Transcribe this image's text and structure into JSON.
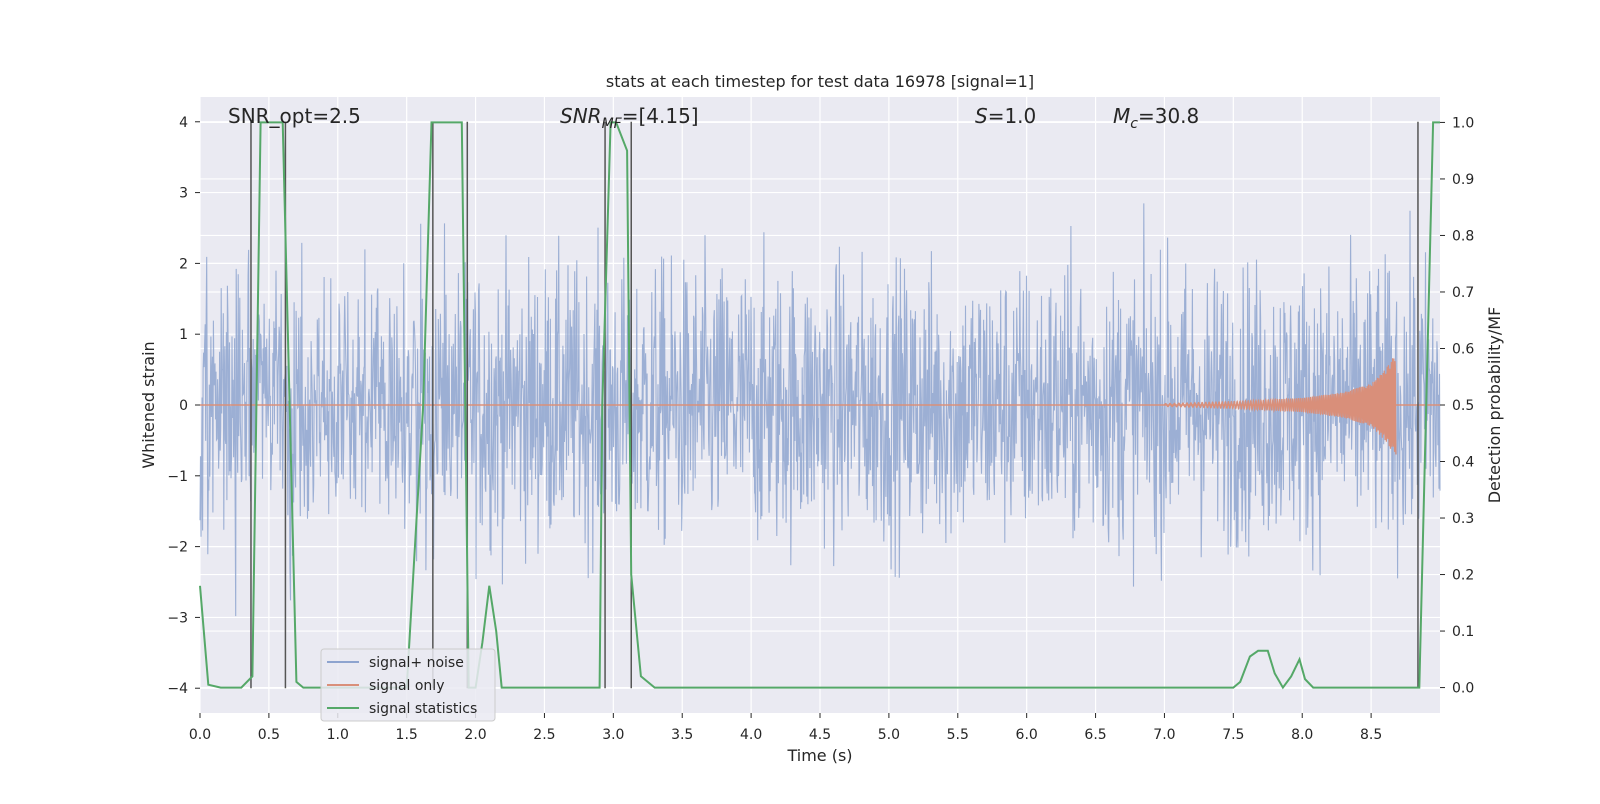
{
  "chart_data": {
    "type": "line",
    "title": "stats at each timestep for test data 16978 [signal=1]",
    "xlabel": "Time (s)",
    "ylabel": "Whitened strain",
    "y2label": "Detection probability/MF",
    "xlim": [
      0.0,
      9.0
    ],
    "ylim": [
      -4.35,
      4.35
    ],
    "y2lim": [
      -0.045,
      1.045
    ],
    "xticks": [
      "0.0",
      "0.5",
      "1.0",
      "1.5",
      "2.0",
      "2.5",
      "3.0",
      "3.5",
      "4.0",
      "4.5",
      "5.0",
      "5.5",
      "6.0",
      "6.5",
      "7.0",
      "7.5",
      "8.0",
      "8.5"
    ],
    "yticks": [
      "4",
      "3",
      "2",
      "1",
      "0",
      "−1",
      "−2",
      "−3",
      "−4"
    ],
    "y2ticks": [
      "1.0",
      "0.9",
      "0.8",
      "0.7",
      "0.6",
      "0.5",
      "0.4",
      "0.3",
      "0.2",
      "0.1",
      "0.0"
    ],
    "grid": true,
    "legend_position": "lower-left",
    "annotations": {
      "snr_opt": "SNR_opt=2.5",
      "snr_mf_main": "SNR",
      "snr_mf_sub": "MF",
      "snr_mf_rest": "=[4.15]",
      "s_main": "S",
      "s_rest": "=1.0",
      "mc_main": "M",
      "mc_sub": "c",
      "mc_rest": "=30.8"
    },
    "series": [
      {
        "name": "signal+ noise",
        "color": "#8ea4cf",
        "kind": "noise",
        "amplitude_envelope": 2.6
      },
      {
        "name": "signal only",
        "color": "#d98f7a",
        "kind": "chirp",
        "x": [
          7.0,
          7.5,
          8.0,
          8.3,
          8.5,
          8.6,
          8.65,
          8.68
        ],
        "envelope": [
          0.02,
          0.05,
          0.1,
          0.18,
          0.3,
          0.5,
          0.65,
          0.7
        ]
      },
      {
        "name": "signal statistics",
        "color": "#55a868",
        "axis": "right",
        "x": [
          0.0,
          0.06,
          0.15,
          0.3,
          0.38,
          0.44,
          0.5,
          0.6,
          0.7,
          0.75,
          0.8,
          1.0,
          1.5,
          1.62,
          1.68,
          1.74,
          1.8,
          1.9,
          1.95,
          2.0,
          2.05,
          2.1,
          2.15,
          2.19,
          2.25,
          2.3,
          2.5,
          2.9,
          2.92,
          2.98,
          3.02,
          3.1,
          3.13,
          3.2,
          3.3,
          3.5,
          4.0,
          5.0,
          6.0,
          7.0,
          7.5,
          7.55,
          7.62,
          7.68,
          7.75,
          7.8,
          7.86,
          7.92,
          7.98,
          8.02,
          8.08,
          8.15,
          8.3,
          8.6,
          8.85,
          8.9,
          8.95,
          9.0
        ],
        "values": [
          0.18,
          0.005,
          0.0,
          0.0,
          0.02,
          1.0,
          1.0,
          1.0,
          0.01,
          0.0,
          0.0,
          0.0,
          0.0,
          0.5,
          1.0,
          1.0,
          1.0,
          1.0,
          0.0,
          0.0,
          0.08,
          0.18,
          0.1,
          0.0,
          0.0,
          0.0,
          0.0,
          0.0,
          0.5,
          1.0,
          1.0,
          0.95,
          0.2,
          0.02,
          0.0,
          0.0,
          0.0,
          0.0,
          0.0,
          0.0,
          0.0,
          0.01,
          0.055,
          0.065,
          0.065,
          0.025,
          0.0,
          0.02,
          0.05,
          0.015,
          0.0,
          0.0,
          0.0,
          0.0,
          0.0,
          0.5,
          1.0,
          1.0
        ]
      }
    ],
    "vertical_markers": {
      "color": "#555555",
      "x": [
        0.37,
        0.62,
        1.69,
        1.94,
        2.94,
        3.13,
        8.84
      ]
    },
    "styles": {
      "plot_background": "#eaeaf2",
      "grid_color": "#ffffff"
    }
  }
}
